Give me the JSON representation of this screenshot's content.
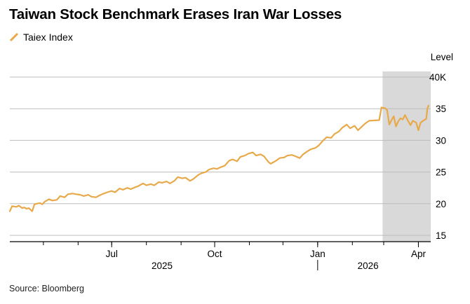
{
  "title": "Taiwan Stock Benchmark Erases Iran War Losses",
  "source": "Source: Bloomberg",
  "colors": {
    "series": "#E8A94A",
    "shade": "#D9D9D9",
    "grid": "#BDBDBD",
    "text": "#000000"
  },
  "chart_data": {
    "type": "line",
    "title": "Taiwan Stock Benchmark Erases Iran War Losses",
    "ylabel": "Level",
    "ylim": [
      14,
      40
    ],
    "y_ticks": [
      15,
      20,
      25,
      30,
      35,
      40
    ],
    "y_tick_labels": [
      "15",
      "20",
      "25",
      "30",
      "35",
      "40K"
    ],
    "x_range": [
      "2025-04-01",
      "2026-04-12"
    ],
    "x_ticks": [
      {
        "date": "2025-07-01",
        "label": "Jul"
      },
      {
        "date": "2025-10-01",
        "label": "Oct"
      },
      {
        "date": "2026-01-01",
        "label": "Jan"
      },
      {
        "date": "2026-04-01",
        "label": "Apr"
      }
    ],
    "year_labels": [
      {
        "date": "2025-08-15",
        "label": "2025"
      },
      {
        "date": "2026-02-15",
        "label": "2026"
      }
    ],
    "year_divider": "2026-01-01",
    "shaded_region": [
      "2026-02-28",
      "2026-04-12"
    ],
    "series": [
      {
        "name": "Taiex Index",
        "points": [
          [
            "2025-04-01",
            18.8
          ],
          [
            "2025-04-03",
            19.6
          ],
          [
            "2025-04-07",
            19.5
          ],
          [
            "2025-04-09",
            19.7
          ],
          [
            "2025-04-12",
            19.3
          ],
          [
            "2025-04-14",
            19.4
          ],
          [
            "2025-04-16",
            19.2
          ],
          [
            "2025-04-18",
            19.3
          ],
          [
            "2025-04-21",
            18.8
          ],
          [
            "2025-04-23",
            19.9
          ],
          [
            "2025-04-25",
            20.0
          ],
          [
            "2025-04-28",
            20.1
          ],
          [
            "2025-04-30",
            19.9
          ],
          [
            "2025-05-02",
            20.3
          ],
          [
            "2025-05-06",
            20.7
          ],
          [
            "2025-05-09",
            20.5
          ],
          [
            "2025-05-13",
            20.6
          ],
          [
            "2025-05-16",
            21.2
          ],
          [
            "2025-05-20",
            21.0
          ],
          [
            "2025-05-23",
            21.5
          ],
          [
            "2025-05-27",
            21.6
          ],
          [
            "2025-05-30",
            21.5
          ],
          [
            "2025-06-03",
            21.4
          ],
          [
            "2025-06-06",
            21.2
          ],
          [
            "2025-06-10",
            21.4
          ],
          [
            "2025-06-13",
            21.1
          ],
          [
            "2025-06-17",
            21.0
          ],
          [
            "2025-06-20",
            21.3
          ],
          [
            "2025-06-24",
            21.6
          ],
          [
            "2025-06-27",
            21.8
          ],
          [
            "2025-07-01",
            22.0
          ],
          [
            "2025-07-04",
            21.8
          ],
          [
            "2025-07-08",
            22.4
          ],
          [
            "2025-07-11",
            22.2
          ],
          [
            "2025-07-15",
            22.5
          ],
          [
            "2025-07-18",
            22.3
          ],
          [
            "2025-07-22",
            22.6
          ],
          [
            "2025-07-25",
            22.8
          ],
          [
            "2025-07-29",
            23.2
          ],
          [
            "2025-08-01",
            22.9
          ],
          [
            "2025-08-05",
            23.1
          ],
          [
            "2025-08-08",
            22.9
          ],
          [
            "2025-08-12",
            23.4
          ],
          [
            "2025-08-15",
            23.3
          ],
          [
            "2025-08-19",
            23.5
          ],
          [
            "2025-08-22",
            23.2
          ],
          [
            "2025-08-26",
            23.6
          ],
          [
            "2025-08-29",
            24.2
          ],
          [
            "2025-09-02",
            24.0
          ],
          [
            "2025-09-05",
            24.1
          ],
          [
            "2025-09-09",
            23.6
          ],
          [
            "2025-09-12",
            23.9
          ],
          [
            "2025-09-16",
            24.5
          ],
          [
            "2025-09-19",
            24.8
          ],
          [
            "2025-09-23",
            25.0
          ],
          [
            "2025-09-26",
            25.4
          ],
          [
            "2025-09-30",
            25.6
          ],
          [
            "2025-10-03",
            25.5
          ],
          [
            "2025-10-07",
            25.8
          ],
          [
            "2025-10-10",
            26.0
          ],
          [
            "2025-10-14",
            26.8
          ],
          [
            "2025-10-17",
            27.0
          ],
          [
            "2025-10-21",
            26.7
          ],
          [
            "2025-10-24",
            27.4
          ],
          [
            "2025-10-28",
            27.6
          ],
          [
            "2025-10-31",
            27.9
          ],
          [
            "2025-11-04",
            28.1
          ],
          [
            "2025-11-07",
            27.6
          ],
          [
            "2025-11-11",
            27.8
          ],
          [
            "2025-11-14",
            27.5
          ],
          [
            "2025-11-18",
            26.6
          ],
          [
            "2025-11-20",
            26.3
          ],
          [
            "2025-11-22",
            26.5
          ],
          [
            "2025-11-25",
            26.8
          ],
          [
            "2025-11-28",
            27.2
          ],
          [
            "2025-12-02",
            27.3
          ],
          [
            "2025-12-05",
            27.6
          ],
          [
            "2025-12-09",
            27.7
          ],
          [
            "2025-12-12",
            27.5
          ],
          [
            "2025-12-16",
            27.2
          ],
          [
            "2025-12-19",
            27.8
          ],
          [
            "2025-12-23",
            28.3
          ],
          [
            "2025-12-26",
            28.6
          ],
          [
            "2025-12-30",
            28.8
          ],
          [
            "2026-01-02",
            29.2
          ],
          [
            "2026-01-06",
            30.0
          ],
          [
            "2026-01-09",
            30.5
          ],
          [
            "2026-01-13",
            30.4
          ],
          [
            "2026-01-16",
            31.0
          ],
          [
            "2026-01-20",
            31.4
          ],
          [
            "2026-01-23",
            32.0
          ],
          [
            "2026-01-27",
            32.5
          ],
          [
            "2026-01-30",
            31.9
          ],
          [
            "2026-02-03",
            32.3
          ],
          [
            "2026-02-06",
            31.6
          ],
          [
            "2026-02-09",
            32.1
          ],
          [
            "2026-02-12",
            32.6
          ],
          [
            "2026-02-16",
            33.1
          ],
          [
            "2026-02-25",
            33.2
          ],
          [
            "2026-02-27",
            35.2
          ],
          [
            "2026-03-02",
            35.1
          ],
          [
            "2026-03-04",
            34.8
          ],
          [
            "2026-03-06",
            32.5
          ],
          [
            "2026-03-08",
            33.2
          ],
          [
            "2026-03-10",
            33.8
          ],
          [
            "2026-03-12",
            32.2
          ],
          [
            "2026-03-14",
            33.0
          ],
          [
            "2026-03-16",
            33.5
          ],
          [
            "2026-03-18",
            33.3
          ],
          [
            "2026-03-20",
            34.0
          ],
          [
            "2026-03-23",
            33.0
          ],
          [
            "2026-03-25",
            32.4
          ],
          [
            "2026-03-27",
            33.1
          ],
          [
            "2026-03-30",
            32.8
          ],
          [
            "2026-04-01",
            31.6
          ],
          [
            "2026-04-03",
            32.8
          ],
          [
            "2026-04-06",
            33.2
          ],
          [
            "2026-04-08",
            33.4
          ],
          [
            "2026-04-09",
            35.0
          ],
          [
            "2026-04-10",
            35.5
          ]
        ]
      }
    ]
  }
}
